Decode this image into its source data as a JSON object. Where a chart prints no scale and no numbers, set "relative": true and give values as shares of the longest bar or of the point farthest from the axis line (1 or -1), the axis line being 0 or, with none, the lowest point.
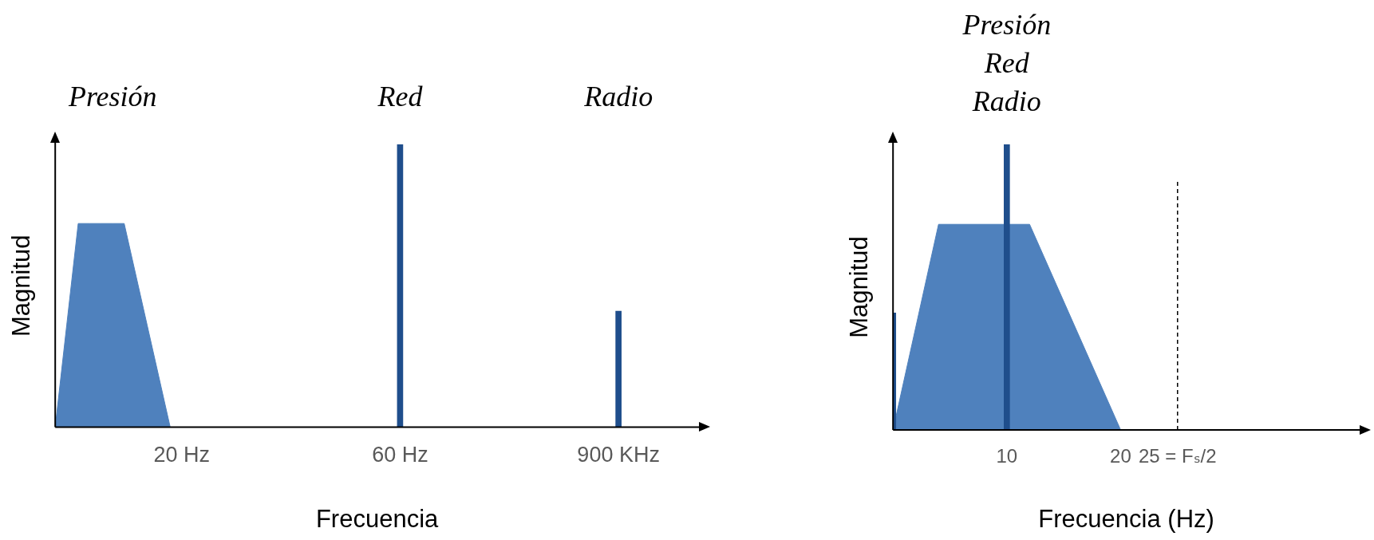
{
  "chart_data": [
    {
      "type": "area",
      "relative": true,
      "xlabel": "Frecuencia",
      "ylabel": "Magnitud",
      "categories": [
        null,
        null,
        null,
        null,
        null,
        null,
        null,
        null,
        null,
        null,
        null,
        "20 Hz",
        null,
        null,
        null,
        null,
        null,
        null,
        null,
        null,
        null,
        null,
        null,
        null,
        null,
        null,
        null,
        null,
        null,
        null,
        "60 Hz",
        null,
        null,
        null,
        null,
        null,
        null,
        null,
        null,
        null,
        null,
        null,
        null,
        null,
        null,
        null,
        null,
        null,
        null,
        "900 KHz",
        null,
        null,
        null,
        null,
        null,
        null,
        null
      ],
      "series": [
        {
          "color": "#4f81bd",
          "values": [
            0,
            0.36,
            0.72,
            0.72,
            0.72,
            0.72,
            0.72,
            0.54,
            0.36,
            0.18,
            0,
            null,
            null,
            null,
            null,
            null,
            null,
            null,
            null,
            null,
            null,
            null,
            null,
            null,
            null,
            null,
            null,
            null,
            null,
            null,
            null,
            null,
            null,
            null,
            null,
            null,
            null,
            null,
            null,
            null,
            null,
            null,
            null,
            null,
            null,
            null,
            null,
            null,
            null,
            null,
            null,
            null,
            null,
            null,
            null,
            null,
            null
          ]
        },
        {
          "type": "bar",
          "color": "#1f4e8c",
          "values": [
            null,
            null,
            null,
            null,
            null,
            null,
            null,
            null,
            null,
            null,
            null,
            null,
            null,
            null,
            null,
            null,
            null,
            null,
            null,
            null,
            null,
            null,
            null,
            null,
            null,
            null,
            null,
            null,
            null,
            null,
            1,
            null,
            null,
            null,
            null,
            null,
            null,
            null,
            null,
            null,
            null,
            null,
            null,
            null,
            null,
            null,
            null,
            null,
            null,
            0.41,
            null,
            null,
            null,
            null,
            null,
            null,
            null
          ]
        }
      ],
      "annotations": [
        "Presión",
        "Red",
        "Radio"
      ]
    },
    {
      "type": "area",
      "relative": true,
      "xlabel": "Frecuencia (Hz)",
      "ylabel": "Magnitud",
      "xlim": [
        0,
        41
      ],
      "xticks": [
        10,
        20,
        {
          "value": 25,
          "label": "25 = Fₛ/2"
        }
      ],
      "series": [
        {
          "color": "#4f81bd",
          "x": [
            0,
            4,
            12,
            20
          ],
          "values": [
            0,
            0.72,
            0.72,
            0
          ]
        },
        {
          "type": "bar",
          "color": "#1f4e8c",
          "x": [
            0,
            10
          ],
          "values": [
            0.41,
            1
          ]
        }
      ],
      "ref_lines": [
        {
          "axis": "x",
          "value": 25,
          "line_style": "dashed",
          "color": "#000000"
        }
      ],
      "annotations": [
        "Presión",
        "Red",
        "Radio"
      ]
    }
  ]
}
